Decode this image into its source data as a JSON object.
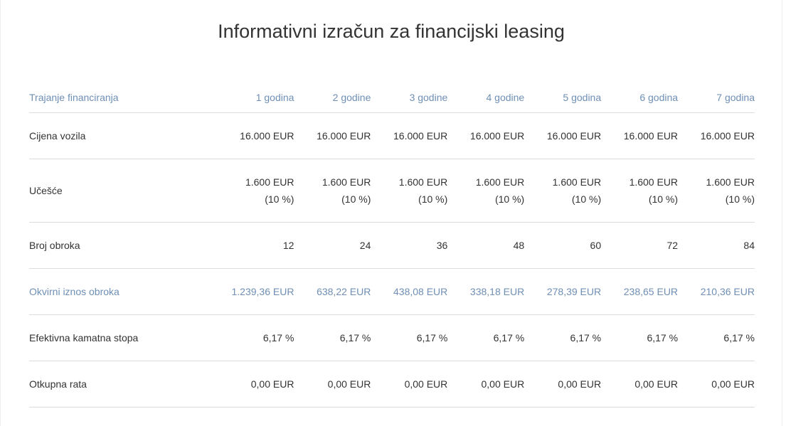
{
  "header": {
    "title": "Informativni izračun za financijski leasing"
  },
  "table": {
    "columns": [
      "Trajanje financiranja",
      "1 godina",
      "2 godine",
      "3 godine",
      "4 godine",
      "5 godina",
      "6 godina",
      "7 godina"
    ],
    "rows": [
      [
        "Cijena vozila",
        "16.000 EUR",
        "16.000 EUR",
        "16.000 EUR",
        "16.000 EUR",
        "16.000 EUR",
        "16.000 EUR",
        "16.000 EUR"
      ],
      [
        "Učešće",
        [
          "1.600 EUR",
          "(10 %)"
        ],
        [
          "1.600 EUR",
          "(10 %)"
        ],
        [
          "1.600 EUR",
          "(10 %)"
        ],
        [
          "1.600 EUR",
          "(10 %)"
        ],
        [
          "1.600 EUR",
          "(10 %)"
        ],
        [
          "1.600 EUR",
          "(10 %)"
        ],
        [
          "1.600 EUR",
          "(10 %)"
        ]
      ],
      [
        "Broj obroka",
        "12",
        "24",
        "36",
        "48",
        "60",
        "72",
        "84"
      ],
      [
        "Okvirni iznos obroka",
        "1.239,36 EUR",
        "638,22 EUR",
        "438,08 EUR",
        "338,18 EUR",
        "278,39 EUR",
        "238,65 EUR",
        "210,36 EUR"
      ],
      [
        "Efektivna kamatna stopa",
        "6,17 %",
        "6,17 %",
        "6,17 %",
        "6,17 %",
        "6,17 %",
        "6,17 %",
        "6,17 %"
      ],
      [
        "Otkupna rata",
        "0,00 EUR",
        "0,00 EUR",
        "0,00 EUR",
        "0,00 EUR",
        "0,00 EUR",
        "0,00 EUR",
        "0,00 EUR"
      ]
    ]
  }
}
